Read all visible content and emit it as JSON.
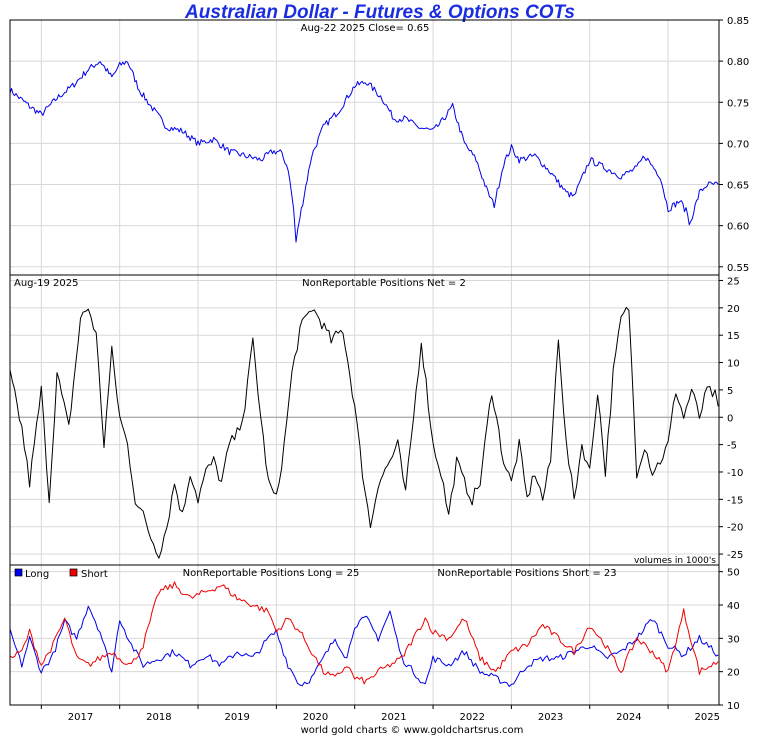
{
  "title": "Australian Dollar - Futures & Options COTs",
  "footer": "world gold charts © www.goldchartsrus.com",
  "colors": {
    "price": "#0000ee",
    "net": "#000000",
    "long": "#0000ee",
    "short": "#ee0000",
    "grid": "#d8d8d8"
  },
  "chart_data": [
    {
      "type": "line",
      "panel": "price",
      "annotation": "Aug-22  2025   Close= 0.65",
      "ylim": [
        0.54,
        0.85
      ],
      "yticks": [
        "0.55",
        "0.60",
        "0.65",
        "0.70",
        "0.75",
        "0.80",
        "0.85"
      ],
      "grid": true,
      "series": [
        {
          "color": "#0000ee",
          "x": [
            2016.6,
            2016.85,
            2017.0,
            2017.2,
            2017.4,
            2017.6,
            2017.75,
            2017.9,
            2018.0,
            2018.1,
            2018.25,
            2018.4,
            2018.6,
            2018.8,
            2019.0,
            2019.2,
            2019.4,
            2019.6,
            2019.8,
            2019.95,
            2020.05,
            2020.15,
            2020.22,
            2020.25,
            2020.3,
            2020.45,
            2020.6,
            2020.8,
            2021.0,
            2021.15,
            2021.35,
            2021.5,
            2021.65,
            2021.8,
            2022.0,
            2022.1,
            2022.25,
            2022.4,
            2022.55,
            2022.7,
            2022.78,
            2022.9,
            2023.0,
            2023.1,
            2023.3,
            2023.5,
            2023.7,
            2023.8,
            2024.0,
            2024.2,
            2024.4,
            2024.6,
            2024.7,
            2024.9,
            2025.0,
            2025.15,
            2025.25,
            2025.27,
            2025.4,
            2025.5,
            2025.64
          ],
          "y": [
            0.765,
            0.745,
            0.735,
            0.755,
            0.77,
            0.79,
            0.8,
            0.78,
            0.795,
            0.8,
            0.765,
            0.745,
            0.72,
            0.715,
            0.7,
            0.705,
            0.69,
            0.685,
            0.68,
            0.69,
            0.69,
            0.67,
            0.62,
            0.58,
            0.61,
            0.685,
            0.72,
            0.74,
            0.77,
            0.775,
            0.755,
            0.73,
            0.73,
            0.72,
            0.715,
            0.725,
            0.745,
            0.7,
            0.68,
            0.64,
            0.625,
            0.675,
            0.695,
            0.68,
            0.685,
            0.665,
            0.64,
            0.635,
            0.68,
            0.67,
            0.66,
            0.67,
            0.685,
            0.66,
            0.62,
            0.63,
            0.615,
            0.6,
            0.64,
            0.65,
            0.65
          ]
        }
      ]
    },
    {
      "type": "line",
      "panel": "net",
      "annotation": "Aug-19  2025",
      "title": "NonReportable Positions Net = 2",
      "note": "volumes in 1000's",
      "ylim": [
        -27,
        26
      ],
      "yticks": [
        "-25",
        "-20",
        "-15",
        "-10",
        "-5",
        "0",
        "5",
        "10",
        "15",
        "20",
        "25"
      ],
      "grid": true,
      "series": [
        {
          "color": "#000000",
          "x": [
            2016.6,
            2016.75,
            2016.85,
            2017.0,
            2017.1,
            2017.2,
            2017.35,
            2017.5,
            2017.6,
            2017.7,
            2017.8,
            2017.9,
            2018.0,
            2018.1,
            2018.2,
            2018.3,
            2018.4,
            2018.5,
            2018.6,
            2018.7,
            2018.8,
            2018.9,
            2019.0,
            2019.1,
            2019.2,
            2019.3,
            2019.4,
            2019.5,
            2019.6,
            2019.7,
            2019.8,
            2019.9,
            2020.0,
            2020.1,
            2020.2,
            2020.3,
            2020.45,
            2020.55,
            2020.7,
            2020.85,
            2021.0,
            2021.1,
            2021.2,
            2021.3,
            2021.45,
            2021.55,
            2021.65,
            2021.75,
            2021.85,
            2022.0,
            2022.1,
            2022.2,
            2022.3,
            2022.4,
            2022.5,
            2022.6,
            2022.75,
            2022.9,
            2023.0,
            2023.1,
            2023.2,
            2023.3,
            2023.4,
            2023.5,
            2023.6,
            2023.7,
            2023.8,
            2023.9,
            2024.0,
            2024.1,
            2024.2,
            2024.3,
            2024.4,
            2024.5,
            2024.6,
            2024.7,
            2024.8,
            2024.9,
            2025.0,
            2025.1,
            2025.2,
            2025.3,
            2025.4,
            2025.5,
            2025.6,
            2025.64
          ],
          "y": [
            8,
            -2,
            -12,
            5,
            -15,
            8,
            -2,
            18,
            20,
            15,
            -5,
            12,
            0,
            -5,
            -15,
            -18,
            -22,
            -25,
            -20,
            -12,
            -18,
            -10,
            -15,
            -10,
            -8,
            -12,
            -5,
            -3,
            2,
            14,
            0,
            -12,
            -15,
            -5,
            8,
            16,
            20,
            18,
            14,
            16,
            2,
            -10,
            -20,
            -12,
            -8,
            -5,
            -14,
            0,
            14,
            -5,
            -10,
            -18,
            -8,
            -12,
            -15,
            -12,
            5,
            -8,
            -12,
            -5,
            -15,
            -10,
            -15,
            -8,
            15,
            -5,
            -15,
            -5,
            -10,
            5,
            -10,
            8,
            18,
            20,
            -10,
            -5,
            -10,
            -8,
            -5,
            5,
            0,
            5,
            0,
            5,
            4,
            2
          ]
        }
      ]
    },
    {
      "type": "line",
      "panel": "long-short",
      "legend": [
        "Long",
        "Short"
      ],
      "legend_position": "top-left",
      "long_title": "NonReportable Positions Long = 25",
      "short_title": "NonReportable Positions Short = 23",
      "ylim": [
        10,
        52
      ],
      "yticks": [
        "10",
        "20",
        "30",
        "40",
        "50"
      ],
      "xticks": [
        "2017",
        "2018",
        "2019",
        "2020",
        "2021",
        "2022",
        "2023",
        "2024",
        "2025"
      ],
      "grid": true,
      "series": [
        {
          "name": "Long",
          "color": "#0000ee",
          "x": [
            2016.6,
            2016.75,
            2016.85,
            2017.0,
            2017.15,
            2017.3,
            2017.45,
            2017.6,
            2017.75,
            2017.9,
            2018.0,
            2018.15,
            2018.3,
            2018.5,
            2018.7,
            2018.9,
            2019.1,
            2019.3,
            2019.5,
            2019.7,
            2019.9,
            2020.0,
            2020.15,
            2020.3,
            2020.45,
            2020.6,
            2020.75,
            2020.9,
            2021.0,
            2021.15,
            2021.3,
            2021.45,
            2021.6,
            2021.75,
            2021.9,
            2022.0,
            2022.2,
            2022.4,
            2022.6,
            2022.8,
            2023.0,
            2023.2,
            2023.4,
            2023.6,
            2023.8,
            2024.0,
            2024.2,
            2024.4,
            2024.6,
            2024.8,
            2025.0,
            2025.2,
            2025.4,
            2025.64
          ],
          "y": [
            32,
            22,
            30,
            20,
            25,
            35,
            30,
            40,
            32,
            20,
            36,
            28,
            22,
            24,
            26,
            22,
            25,
            22,
            26,
            24,
            30,
            32,
            22,
            16,
            18,
            24,
            30,
            24,
            34,
            36,
            30,
            38,
            24,
            20,
            16,
            24,
            22,
            26,
            20,
            18,
            16,
            22,
            24,
            24,
            26,
            28,
            24,
            26,
            30,
            36,
            28,
            25,
            30,
            25
          ]
        },
        {
          "name": "Short",
          "color": "#ee0000",
          "x": [
            2016.6,
            2016.75,
            2016.85,
            2017.0,
            2017.15,
            2017.3,
            2017.45,
            2017.6,
            2017.75,
            2017.9,
            2018.0,
            2018.15,
            2018.3,
            2018.5,
            2018.7,
            2018.9,
            2019.1,
            2019.3,
            2019.5,
            2019.7,
            2019.9,
            2020.0,
            2020.15,
            2020.3,
            2020.45,
            2020.6,
            2020.75,
            2020.9,
            2021.0,
            2021.15,
            2021.3,
            2021.45,
            2021.6,
            2021.75,
            2021.9,
            2022.0,
            2022.2,
            2022.4,
            2022.6,
            2022.8,
            2023.0,
            2023.2,
            2023.4,
            2023.6,
            2023.8,
            2024.0,
            2024.2,
            2024.4,
            2024.6,
            2024.8,
            2025.0,
            2025.2,
            2025.4,
            2025.64
          ],
          "y": [
            24,
            26,
            32,
            22,
            28,
            36,
            24,
            22,
            24,
            26,
            24,
            22,
            28,
            44,
            46,
            42,
            44,
            46,
            42,
            40,
            38,
            32,
            36,
            32,
            26,
            20,
            18,
            22,
            18,
            17,
            20,
            22,
            24,
            30,
            36,
            32,
            30,
            36,
            24,
            20,
            26,
            28,
            34,
            30,
            26,
            34,
            28,
            20,
            30,
            26,
            20,
            38,
            20,
            23
          ]
        }
      ]
    }
  ]
}
